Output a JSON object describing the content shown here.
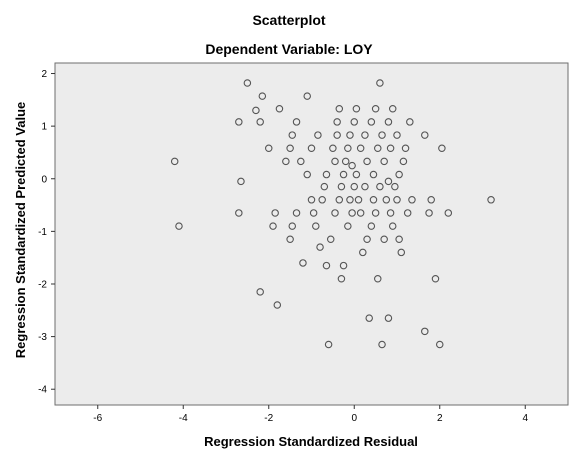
{
  "chart_data": {
    "type": "scatter",
    "title": "Scatterplot",
    "subtitle": "Dependent Variable: LOY",
    "xlabel": "Regression Standardized Residual",
    "ylabel": "Regression Standardized Predicted Value",
    "xlim": [
      -7,
      5
    ],
    "ylim": [
      -4.3,
      2.2
    ],
    "xticks": [
      -6,
      -4,
      -2,
      0,
      2,
      4
    ],
    "yticks": [
      2,
      1,
      0,
      -1,
      -2,
      -3,
      -4
    ],
    "grid": false,
    "plot_background": "#ececec",
    "point_color": "#555555",
    "points": [
      {
        "x": -4.2,
        "y": 0.33
      },
      {
        "x": -4.1,
        "y": -0.9
      },
      {
        "x": -2.7,
        "y": 1.08
      },
      {
        "x": -2.65,
        "y": -0.05
      },
      {
        "x": -2.7,
        "y": -0.65
      },
      {
        "x": -2.5,
        "y": 1.82
      },
      {
        "x": -2.3,
        "y": 1.3
      },
      {
        "x": -2.2,
        "y": 1.08
      },
      {
        "x": -2.2,
        "y": -2.15
      },
      {
        "x": -2.15,
        "y": 1.57
      },
      {
        "x": -2.0,
        "y": 0.58
      },
      {
        "x": -1.9,
        "y": -0.9
      },
      {
        "x": -1.85,
        "y": -0.65
      },
      {
        "x": -1.8,
        "y": -2.4
      },
      {
        "x": -1.75,
        "y": 1.33
      },
      {
        "x": -1.6,
        "y": 0.33
      },
      {
        "x": -1.5,
        "y": 0.58
      },
      {
        "x": -1.5,
        "y": -1.15
      },
      {
        "x": -1.45,
        "y": 0.83
      },
      {
        "x": -1.45,
        "y": -0.9
      },
      {
        "x": -1.35,
        "y": 1.08
      },
      {
        "x": -1.35,
        "y": -0.65
      },
      {
        "x": -1.25,
        "y": 0.33
      },
      {
        "x": -1.2,
        "y": -1.6
      },
      {
        "x": -1.1,
        "y": 1.57
      },
      {
        "x": -1.1,
        "y": 0.08
      },
      {
        "x": -1.0,
        "y": 0.58
      },
      {
        "x": -1.0,
        "y": -0.4
      },
      {
        "x": -0.95,
        "y": -0.65
      },
      {
        "x": -0.9,
        "y": -0.9
      },
      {
        "x": -0.85,
        "y": 0.83
      },
      {
        "x": -0.8,
        "y": -1.3
      },
      {
        "x": -0.75,
        "y": -0.4
      },
      {
        "x": -0.7,
        "y": -0.15
      },
      {
        "x": -0.65,
        "y": 0.08
      },
      {
        "x": -0.65,
        "y": -1.65
      },
      {
        "x": -0.6,
        "y": -3.15
      },
      {
        "x": -0.55,
        "y": -1.15
      },
      {
        "x": -0.5,
        "y": 0.58
      },
      {
        "x": -0.45,
        "y": 0.33
      },
      {
        "x": -0.45,
        "y": -0.65
      },
      {
        "x": -0.4,
        "y": 0.83
      },
      {
        "x": -0.4,
        "y": 1.08
      },
      {
        "x": -0.35,
        "y": -0.4
      },
      {
        "x": -0.35,
        "y": 1.33
      },
      {
        "x": -0.3,
        "y": -0.15
      },
      {
        "x": -0.3,
        "y": -1.9
      },
      {
        "x": -0.25,
        "y": 0.08
      },
      {
        "x": -0.25,
        "y": -1.65
      },
      {
        "x": -0.2,
        "y": 0.33
      },
      {
        "x": -0.15,
        "y": 0.58
      },
      {
        "x": -0.15,
        "y": -0.9
      },
      {
        "x": -0.1,
        "y": 0.83
      },
      {
        "x": -0.1,
        "y": -0.4
      },
      {
        "x": -0.05,
        "y": 0.25
      },
      {
        "x": -0.05,
        "y": -0.65
      },
      {
        "x": 0.0,
        "y": 1.08
      },
      {
        "x": 0.0,
        "y": -0.15
      },
      {
        "x": 0.05,
        "y": 0.08
      },
      {
        "x": 0.05,
        "y": 1.33
      },
      {
        "x": 0.1,
        "y": -0.4
      },
      {
        "x": 0.15,
        "y": 0.58
      },
      {
        "x": 0.15,
        "y": -0.65
      },
      {
        "x": 0.2,
        "y": -1.4
      },
      {
        "x": 0.25,
        "y": 0.83
      },
      {
        "x": 0.25,
        "y": -0.15
      },
      {
        "x": 0.3,
        "y": 0.33
      },
      {
        "x": 0.3,
        "y": -1.15
      },
      {
        "x": 0.35,
        "y": -2.65
      },
      {
        "x": 0.4,
        "y": 1.08
      },
      {
        "x": 0.4,
        "y": -0.9
      },
      {
        "x": 0.45,
        "y": 0.08
      },
      {
        "x": 0.45,
        "y": -0.4
      },
      {
        "x": 0.5,
        "y": 1.33
      },
      {
        "x": 0.5,
        "y": -0.65
      },
      {
        "x": 0.55,
        "y": 0.58
      },
      {
        "x": 0.55,
        "y": -1.9
      },
      {
        "x": 0.6,
        "y": -0.15
      },
      {
        "x": 0.6,
        "y": 1.82
      },
      {
        "x": 0.65,
        "y": 0.83
      },
      {
        "x": 0.65,
        "y": -3.15
      },
      {
        "x": 0.7,
        "y": 0.33
      },
      {
        "x": 0.7,
        "y": -1.15
      },
      {
        "x": 0.75,
        "y": -0.4
      },
      {
        "x": 0.8,
        "y": 1.08
      },
      {
        "x": 0.8,
        "y": -0.05
      },
      {
        "x": 0.8,
        "y": -2.65
      },
      {
        "x": 0.85,
        "y": 0.58
      },
      {
        "x": 0.85,
        "y": -0.65
      },
      {
        "x": 0.9,
        "y": 1.33
      },
      {
        "x": 0.9,
        "y": -0.9
      },
      {
        "x": 0.95,
        "y": -0.15
      },
      {
        "x": 1.0,
        "y": 0.83
      },
      {
        "x": 1.0,
        "y": -0.4
      },
      {
        "x": 1.05,
        "y": 0.08
      },
      {
        "x": 1.05,
        "y": -1.15
      },
      {
        "x": 1.1,
        "y": -1.4
      },
      {
        "x": 1.15,
        "y": 0.33
      },
      {
        "x": 1.2,
        "y": 0.58
      },
      {
        "x": 1.25,
        "y": -0.65
      },
      {
        "x": 1.3,
        "y": 1.08
      },
      {
        "x": 1.35,
        "y": -0.4
      },
      {
        "x": 1.65,
        "y": 0.83
      },
      {
        "x": 1.65,
        "y": -2.9
      },
      {
        "x": 1.75,
        "y": -0.65
      },
      {
        "x": 1.8,
        "y": -0.4
      },
      {
        "x": 1.9,
        "y": -1.9
      },
      {
        "x": 2.0,
        "y": -3.15
      },
      {
        "x": 2.05,
        "y": 0.58
      },
      {
        "x": 2.2,
        "y": -0.65
      },
      {
        "x": 3.2,
        "y": -0.4
      }
    ]
  }
}
